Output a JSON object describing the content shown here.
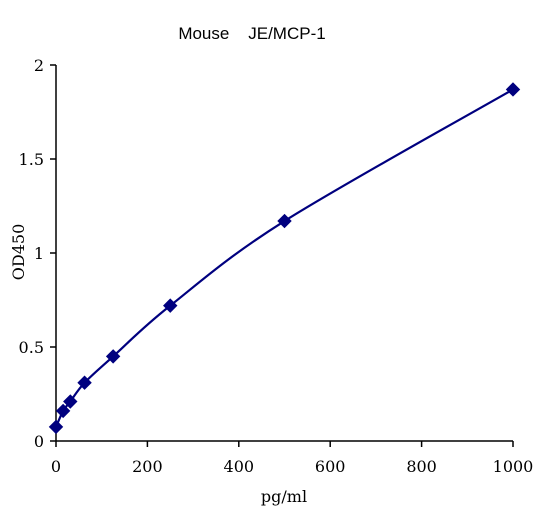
{
  "chart_data": {
    "type": "scatter",
    "title": "Mouse    JE/MCP-1",
    "xlabel": "pg/ml",
    "ylabel": "OD450",
    "xlim": [
      0,
      1000
    ],
    "ylim": [
      0,
      2
    ],
    "x_ticks": [
      0,
      200,
      400,
      600,
      800,
      1000
    ],
    "y_ticks": [
      0,
      0.5,
      1,
      1.5,
      2
    ],
    "x_tick_labels": [
      "0",
      "200",
      "400",
      "600",
      "800",
      "1000"
    ],
    "y_tick_labels": [
      "0",
      "0.5",
      "1",
      "1.5",
      "2"
    ],
    "grid": false,
    "legend": "none",
    "trendline": "smooth curve",
    "series": [
      {
        "x": [
          0,
          15.6,
          31.25,
          62.5,
          125,
          250,
          500,
          1000
        ],
        "y": [
          0.075,
          0.16,
          0.21,
          0.31,
          0.45,
          0.72,
          1.17,
          1.87
        ],
        "color": "#00007f",
        "marker": "diamond"
      }
    ]
  }
}
